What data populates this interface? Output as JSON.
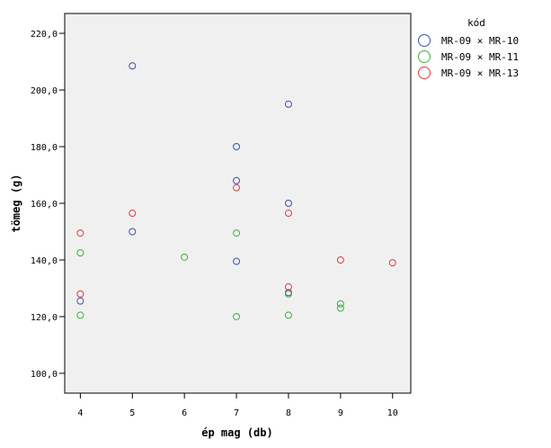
{
  "chart_data": {
    "type": "scatter",
    "xlabel": "ép mag (db)",
    "ylabel": "tömeg (g)",
    "xlim": [
      3.7,
      10.35
    ],
    "ylim": [
      93.0,
      227.0
    ],
    "x_ticks": [
      4,
      5,
      6,
      7,
      8,
      9,
      10
    ],
    "x_tick_labels": [
      "4",
      "5",
      "6",
      "7",
      "8",
      "9",
      "10"
    ],
    "y_ticks": [
      100,
      120,
      140,
      160,
      180,
      200,
      220
    ],
    "y_tick_labels": [
      "100,0",
      "120,0",
      "140,0",
      "160,0",
      "180,0",
      "200,0",
      "220,0"
    ],
    "grid": false,
    "background": "#f0f0f0",
    "legend": {
      "title": "kód",
      "placement": "right"
    },
    "series": [
      {
        "name": "MR-09 × MR-10",
        "color": "#3f4fa8",
        "points": [
          {
            "x": 4,
            "y": 125.5
          },
          {
            "x": 5,
            "y": 208.5
          },
          {
            "x": 5,
            "y": 150.0
          },
          {
            "x": 7,
            "y": 180.0
          },
          {
            "x": 7,
            "y": 168.0
          },
          {
            "x": 7,
            "y": 139.5
          },
          {
            "x": 8,
            "y": 195.0
          },
          {
            "x": 8,
            "y": 160.0
          },
          {
            "x": 8,
            "y": 128.5
          }
        ]
      },
      {
        "name": "MR-09 × MR-11",
        "color": "#3fae3f",
        "points": [
          {
            "x": 4,
            "y": 142.5
          },
          {
            "x": 4,
            "y": 120.5
          },
          {
            "x": 6,
            "y": 141.0
          },
          {
            "x": 7,
            "y": 149.5
          },
          {
            "x": 7,
            "y": 120.0
          },
          {
            "x": 8,
            "y": 128.0
          },
          {
            "x": 8,
            "y": 120.5
          },
          {
            "x": 9,
            "y": 124.5
          },
          {
            "x": 9,
            "y": 123.0
          }
        ]
      },
      {
        "name": "MR-09 × MR-13",
        "color": "#e23a3a",
        "points": [
          {
            "x": 4,
            "y": 149.5
          },
          {
            "x": 4,
            "y": 128.0
          },
          {
            "x": 5,
            "y": 156.5
          },
          {
            "x": 7,
            "y": 165.5
          },
          {
            "x": 8,
            "y": 156.5
          },
          {
            "x": 8,
            "y": 130.5
          },
          {
            "x": 9,
            "y": 140.0
          },
          {
            "x": 10,
            "y": 139.0
          }
        ]
      }
    ]
  }
}
